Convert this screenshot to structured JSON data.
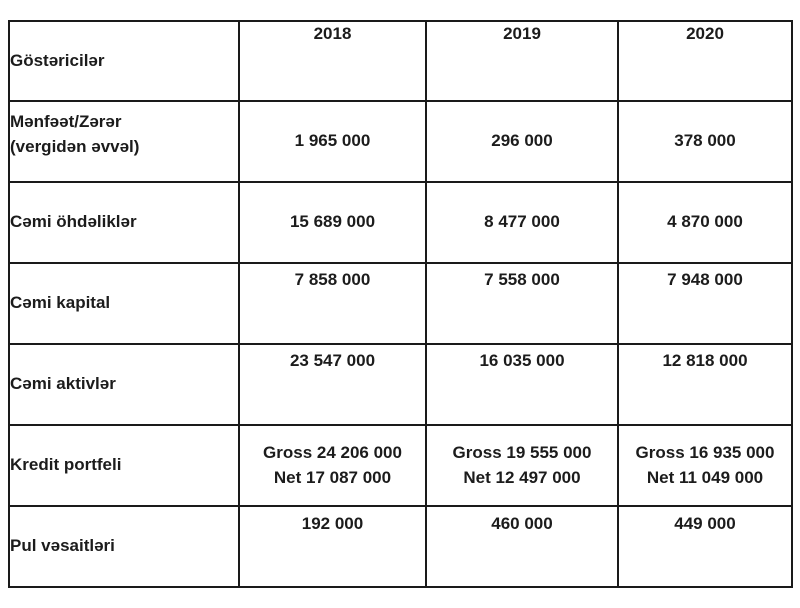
{
  "table": {
    "header": {
      "label": "Göstəricilər",
      "years": [
        "2018",
        "2019",
        "2020"
      ]
    },
    "rows": [
      {
        "label": "Mənfəət/Zərər\n(vergidən əvvəl)",
        "values": [
          "1 965 000",
          "296 000",
          "378 000"
        ]
      },
      {
        "label": "Cəmi öhdəliklər",
        "values": [
          "15 689 000",
          "8 477 000",
          "4 870 000"
        ]
      },
      {
        "label": "Cəmi kapital",
        "values": [
          "7 858 000",
          "7 558 000",
          "7 948 000"
        ]
      },
      {
        "label": "Cəmi aktivlər",
        "values": [
          "23 547 000",
          "16 035 000",
          "12 818 000"
        ]
      },
      {
        "label": "Kredit portfeli",
        "values": [
          "Gross 24 206 000\nNet 17 087 000",
          "Gross 19 555 000\nNet 12 497 000",
          "Gross 16 935 000\nNet 11 049 000"
        ]
      },
      {
        "label": "Pul vəsaitləri",
        "values": [
          "192 000",
          "460 000",
          "449 000"
        ]
      }
    ],
    "colors": {
      "border": "#1a1a1a",
      "text": "#1c1c1c",
      "background": "#ffffff"
    }
  }
}
